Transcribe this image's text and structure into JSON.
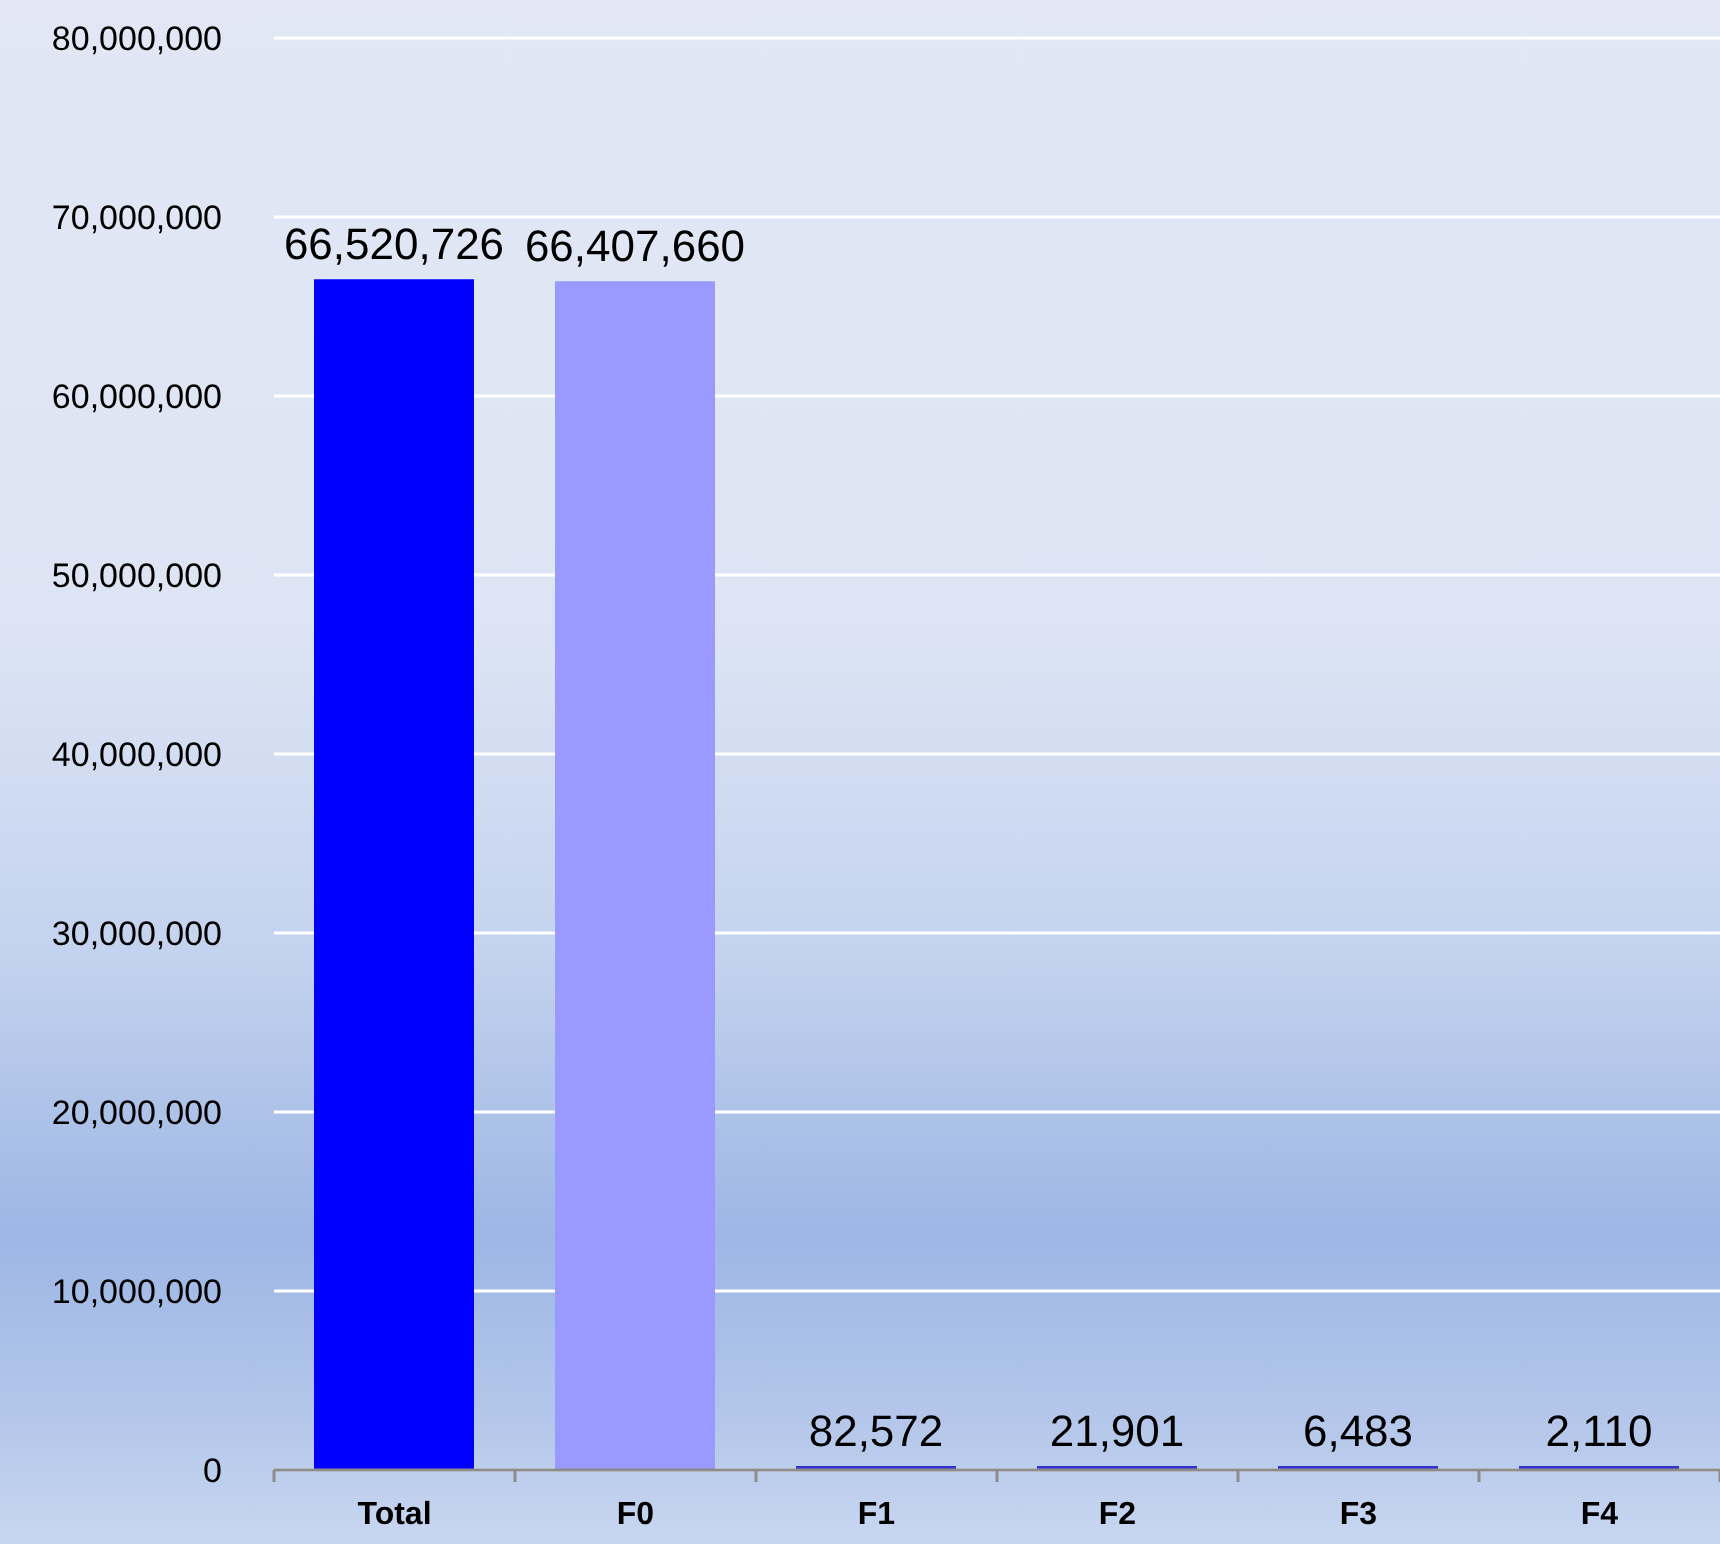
{
  "chart_data": {
    "type": "bar",
    "categories": [
      "Total",
      "F0",
      "F1",
      "F2",
      "F3",
      "F4"
    ],
    "values": [
      66520726,
      66407660,
      82572,
      21901,
      6483,
      2110
    ],
    "value_labels": [
      "66,520,726",
      "66,407,660",
      "82,572",
      "21,901",
      "6,483",
      "2,110"
    ],
    "colors": [
      "#0000ff",
      "#9999ff",
      "#3333cc",
      "#3333cc",
      "#3333cc",
      "#3333cc"
    ],
    "ylim": [
      0,
      80000000
    ],
    "yticks": [
      0,
      {
        "value": 10000000,
        "label": "10,000,000"
      },
      {
        "value": 20000000,
        "label": "20,000,000"
      },
      {
        "value": 30000000,
        "label": "30,000,000"
      },
      {
        "value": 40000000,
        "label": "40,000,000"
      },
      {
        "value": 50000000,
        "label": "50,000,000"
      },
      {
        "value": 60000000,
        "label": "60,000,000"
      },
      {
        "value": 70000000,
        "label": "70,000,000"
      },
      {
        "value": 80000000,
        "label": "80,000,000"
      }
    ],
    "grid": "y"
  }
}
